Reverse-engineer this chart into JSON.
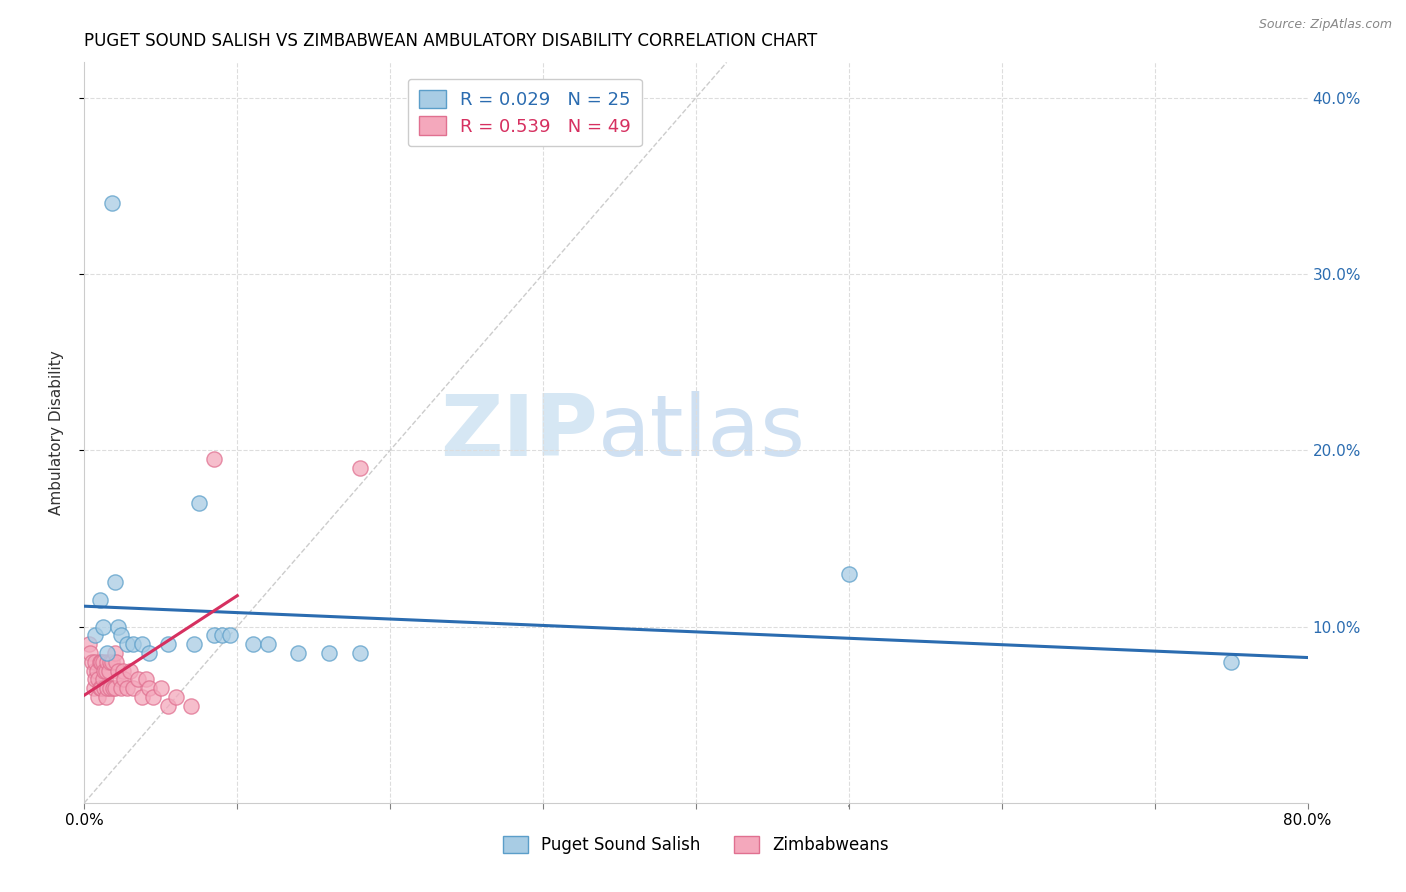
{
  "title": "PUGET SOUND SALISH VS ZIMBABWEAN AMBULATORY DISABILITY CORRELATION CHART",
  "source": "Source: ZipAtlas.com",
  "ylabel": "Ambulatory Disability",
  "xlim": [
    0.0,
    0.8
  ],
  "ylim": [
    0.0,
    0.42
  ],
  "legend1_label": "R = 0.029   N = 25",
  "legend2_label": "R = 0.539   N = 49",
  "legend_bottom1": "Puget Sound Salish",
  "legend_bottom2": "Zimbabweans",
  "blue_color": "#a8cce4",
  "pink_color": "#f4a8bc",
  "blue_edge_color": "#5b9ec9",
  "pink_edge_color": "#e07090",
  "blue_line_color": "#2b6cb0",
  "pink_line_color": "#d63060",
  "diagonal_color": "#cccccc",
  "grid_color": "#dddddd",
  "puget_x": [
    0.018,
    0.007,
    0.01,
    0.012,
    0.015,
    0.02,
    0.022,
    0.024,
    0.028,
    0.032,
    0.038,
    0.042,
    0.055,
    0.072,
    0.075,
    0.085,
    0.09,
    0.095,
    0.11,
    0.12,
    0.14,
    0.16,
    0.18,
    0.5,
    0.75
  ],
  "puget_y": [
    0.34,
    0.095,
    0.115,
    0.1,
    0.085,
    0.125,
    0.1,
    0.095,
    0.09,
    0.09,
    0.09,
    0.085,
    0.09,
    0.09,
    0.17,
    0.095,
    0.095,
    0.095,
    0.09,
    0.09,
    0.085,
    0.085,
    0.085,
    0.13,
    0.08
  ],
  "zimb_x": [
    0.003,
    0.004,
    0.005,
    0.006,
    0.006,
    0.007,
    0.007,
    0.008,
    0.009,
    0.009,
    0.01,
    0.01,
    0.011,
    0.011,
    0.012,
    0.012,
    0.013,
    0.013,
    0.014,
    0.014,
    0.015,
    0.015,
    0.016,
    0.017,
    0.017,
    0.018,
    0.019,
    0.02,
    0.02,
    0.021,
    0.022,
    0.023,
    0.024,
    0.025,
    0.026,
    0.028,
    0.03,
    0.032,
    0.035,
    0.038,
    0.04,
    0.042,
    0.045,
    0.05,
    0.055,
    0.06,
    0.07,
    0.085,
    0.18
  ],
  "zimb_y": [
    0.09,
    0.085,
    0.08,
    0.075,
    0.065,
    0.08,
    0.07,
    0.075,
    0.07,
    0.06,
    0.08,
    0.065,
    0.08,
    0.065,
    0.08,
    0.07,
    0.075,
    0.065,
    0.075,
    0.06,
    0.08,
    0.065,
    0.075,
    0.08,
    0.065,
    0.08,
    0.065,
    0.085,
    0.065,
    0.08,
    0.075,
    0.07,
    0.065,
    0.075,
    0.07,
    0.065,
    0.075,
    0.065,
    0.07,
    0.06,
    0.07,
    0.065,
    0.06,
    0.065,
    0.055,
    0.06,
    0.055,
    0.195,
    0.19
  ]
}
